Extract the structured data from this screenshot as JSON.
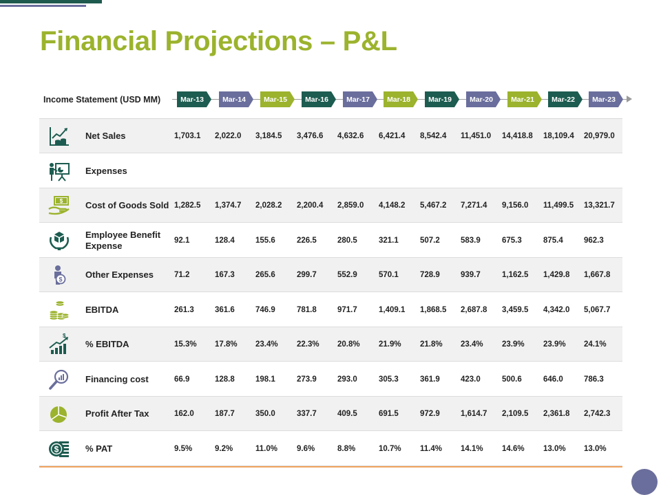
{
  "title": "Financial Projections – P&L",
  "header_label": "Income Statement (USD MM)",
  "periods": [
    {
      "label": "Mar-13",
      "color": "green"
    },
    {
      "label": "Mar-14",
      "color": "slate"
    },
    {
      "label": "Mar-15",
      "color": "lime"
    },
    {
      "label": "Mar-16",
      "color": "green"
    },
    {
      "label": "Mar-17",
      "color": "slate"
    },
    {
      "label": "Mar-18",
      "color": "lime"
    },
    {
      "label": "Mar-19",
      "color": "green"
    },
    {
      "label": "Mar-20",
      "color": "slate"
    },
    {
      "label": "Mar-21",
      "color": "lime"
    },
    {
      "label": "Mar-22",
      "color": "green"
    },
    {
      "label": "Mar-23",
      "color": "slate"
    }
  ],
  "rows": [
    {
      "icon": "bar-chart-coins-icon",
      "label": "Net Sales",
      "values": [
        "1,703.1",
        "2,022.0",
        "3,184.5",
        "3,476.6",
        "4,632.6",
        "6,421.4",
        "8,542.4",
        "11,451.0",
        "14,418.8",
        "18,109.4",
        "20,979.0"
      ]
    },
    {
      "icon": "presentation-board-icon",
      "label": "Expenses",
      "values": []
    },
    {
      "icon": "money-hand-icon",
      "label": "Cost of Goods Sold",
      "values": [
        "1,282.5",
        "1,374.7",
        "2,028.2",
        "2,200.4",
        "2,859.0",
        "4,148.2",
        "5,467.2",
        "7,271.4",
        "9,156.0",
        "11,499.5",
        "13,321.7"
      ]
    },
    {
      "icon": "hands-cube-icon",
      "label": "Employee Benefit Expense",
      "values": [
        "92.1",
        "128.4",
        "155.6",
        "226.5",
        "280.5",
        "321.1",
        "507.2",
        "583.9",
        "675.3",
        "875.4",
        "962.3"
      ]
    },
    {
      "icon": "person-dollar-icon",
      "label": "Other Expenses",
      "values": [
        "71.2",
        "167.3",
        "265.6",
        "299.7",
        "552.9",
        "570.1",
        "728.9",
        "939.7",
        "1,162.5",
        "1,429.8",
        "1,667.8"
      ]
    },
    {
      "icon": "coin-stacks-icon",
      "label": "EBITDA",
      "values": [
        "261.3",
        "361.6",
        "746.9",
        "781.8",
        "971.7",
        "1,409.1",
        "1,868.5",
        "2,687.8",
        "3,459.5",
        "4,342.0",
        "5,067.7"
      ]
    },
    {
      "icon": "growth-arrow-icon",
      "label": "% EBITDA",
      "values": [
        "15.3%",
        "17.8%",
        "23.4%",
        "22.3%",
        "20.8%",
        "21.9%",
        "21.8%",
        "23.4%",
        "23.9%",
        "23.9%",
        "24.1%"
      ]
    },
    {
      "icon": "magnifier-chart-icon",
      "label": "Financing cost",
      "values": [
        "66.9",
        "128.8",
        "198.1",
        "273.9",
        "293.0",
        "305.3",
        "361.9",
        "423.0",
        "500.6",
        "646.0",
        "786.3"
      ]
    },
    {
      "icon": "pie-chart-icon",
      "label": "Profit After Tax",
      "values": [
        "162.0",
        "187.7",
        "350.0",
        "337.7",
        "409.5",
        "691.5",
        "972.9",
        "1,614.7",
        "2,109.5",
        "2,361.8",
        "2,742.3"
      ]
    },
    {
      "icon": "dollar-coin-stack-icon",
      "label": "% PAT",
      "values": [
        "9.5%",
        "9.2%",
        "11.0%",
        "9.6%",
        "8.8%",
        "10.7%",
        "11.4%",
        "14.1%",
        "14.6%",
        "13.0%",
        "13.0%"
      ]
    }
  ]
}
